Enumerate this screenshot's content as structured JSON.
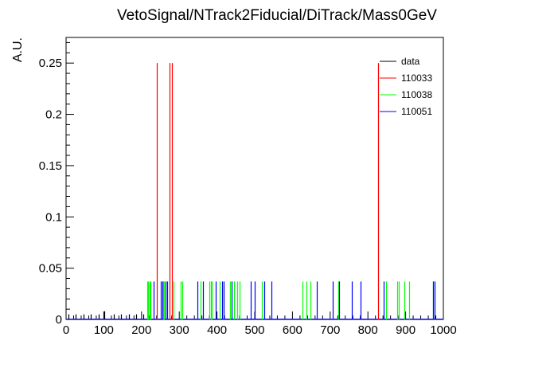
{
  "chart_data": {
    "type": "histogram",
    "title": "VetoSignal/NTrack2Fiducial/DiTrack/Mass0GeV",
    "xlabel": "",
    "ylabel": "A.U.",
    "xlim": [
      0,
      1000
    ],
    "ylim": [
      0,
      0.275
    ],
    "grid": false,
    "legend_placement": "top-right",
    "x_ticks": [
      0,
      100,
      200,
      300,
      400,
      500,
      600,
      700,
      800,
      900,
      1000
    ],
    "x_tick_labels": [
      "0",
      "100",
      "200",
      "300",
      "400",
      "500",
      "600",
      "700",
      "800",
      "900",
      "1000"
    ],
    "y_ticks": [
      0,
      0.05,
      0.1,
      0.15,
      0.2,
      0.25
    ],
    "y_tick_labels": [
      "0",
      "0.05",
      "0.1",
      "0.15",
      "0.2",
      "0.25"
    ],
    "series": [
      {
        "name": "data",
        "color": "#000000",
        "spikes": [
          [
            6,
            0.005
          ],
          [
            26,
            0.005
          ],
          [
            46,
            0.005
          ],
          [
            66,
            0.005
          ],
          [
            86,
            0.005
          ],
          [
            101,
            0.008
          ],
          [
            126,
            0.005
          ],
          [
            146,
            0.005
          ],
          [
            166,
            0.005
          ],
          [
            186,
            0.005
          ],
          [
            204,
            0.005
          ]
        ]
      },
      {
        "name": "110033",
        "color": "#ff0000",
        "spikes": [
          [
            240,
            0.25
          ],
          [
            275,
            0.25
          ],
          [
            280,
            0.25
          ],
          [
            827,
            0.25
          ]
        ]
      },
      {
        "name": "110038",
        "color": "#00ff00",
        "spikes": [
          [
            216,
            0.037
          ],
          [
            218,
            0.037
          ],
          [
            221,
            0.037
          ],
          [
            223,
            0.037
          ],
          [
            258,
            0.037
          ],
          [
            260,
            0.037
          ],
          [
            285,
            0.037
          ],
          [
            304,
            0.037
          ],
          [
            308,
            0.037
          ],
          [
            356,
            0.037
          ],
          [
            379,
            0.037
          ],
          [
            383,
            0.037
          ],
          [
            386,
            0.037
          ],
          [
            408,
            0.037
          ],
          [
            435,
            0.037
          ],
          [
            445,
            0.037
          ],
          [
            453,
            0.037
          ],
          [
            460,
            0.037
          ],
          [
            518,
            0.037
          ],
          [
            627,
            0.037
          ],
          [
            637,
            0.037
          ],
          [
            647,
            0.037
          ],
          [
            722,
            0.037
          ],
          [
            848,
            0.037
          ],
          [
            878,
            0.037
          ],
          [
            882,
            0.037
          ],
          [
            896,
            0.037
          ],
          [
            910,
            0.037
          ],
          [
            973,
            0.037
          ]
        ]
      },
      {
        "name": "110051",
        "color": "#0000ff",
        "spikes": [
          [
            232,
            0.037
          ],
          [
            250,
            0.037
          ],
          [
            255,
            0.037
          ],
          [
            264,
            0.037
          ],
          [
            268,
            0.037
          ],
          [
            348,
            0.037
          ],
          [
            363,
            0.037
          ],
          [
            396,
            0.037
          ],
          [
            413,
            0.037
          ],
          [
            418,
            0.037
          ],
          [
            439,
            0.037
          ],
          [
            490,
            0.037
          ],
          [
            500,
            0.037
          ],
          [
            526,
            0.037
          ],
          [
            544,
            0.037
          ],
          [
            664,
            0.037
          ],
          [
            707,
            0.037
          ],
          [
            724,
            0.037
          ],
          [
            757,
            0.037
          ],
          [
            780,
            0.037
          ],
          [
            841,
            0.037
          ],
          [
            972,
            0.037
          ],
          [
            976,
            0.037
          ]
        ]
      }
    ]
  }
}
